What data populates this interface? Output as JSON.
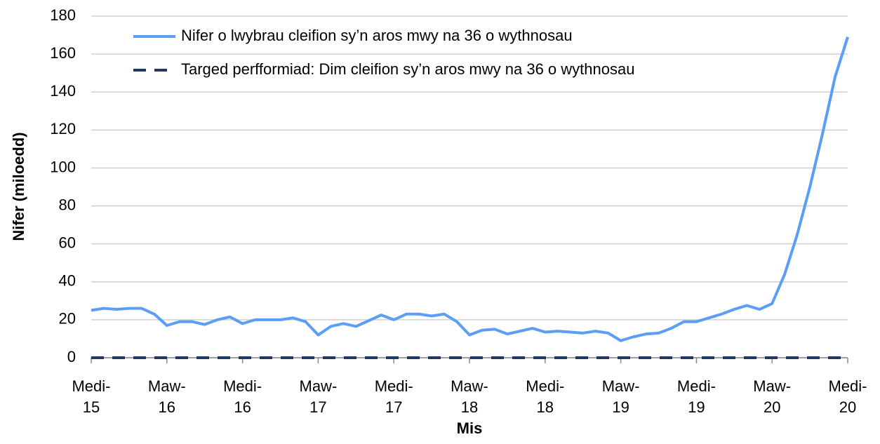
{
  "chart_data": {
    "type": "line",
    "y_label": "Nifer (miloedd)",
    "x_label": "Mis",
    "categories": [
      "Medi-\n15",
      null,
      null,
      null,
      null,
      null,
      "Maw-\n16",
      null,
      null,
      null,
      null,
      null,
      "Medi-\n16",
      null,
      null,
      null,
      null,
      null,
      "Maw-\n17",
      null,
      null,
      null,
      null,
      null,
      "Medi-\n17",
      null,
      null,
      null,
      null,
      null,
      "Maw-\n18",
      null,
      null,
      null,
      null,
      null,
      "Medi-\n18",
      null,
      null,
      null,
      null,
      null,
      "Maw-\n19",
      null,
      null,
      null,
      null,
      null,
      "Medi-\n19",
      null,
      null,
      null,
      null,
      null,
      "Maw-\n20",
      null,
      null,
      null,
      null,
      null,
      "Medi-\n20"
    ],
    "series": [
      {
        "name": "Nifer o lwybrau cleifion sy’n aros mwy na 36 o wythnosau",
        "color": "#5b9ef5",
        "dash": false,
        "values": [
          25,
          26,
          25.5,
          26,
          26,
          23,
          17,
          19,
          19,
          17.5,
          20,
          21.5,
          18,
          20,
          20,
          20,
          21,
          19,
          12,
          16.5,
          18,
          16.5,
          19.5,
          22.5,
          20,
          23,
          23,
          22,
          23,
          19,
          12,
          14.5,
          15,
          12.5,
          14,
          15.5,
          13.5,
          14,
          13.5,
          13,
          14,
          13,
          9,
          11,
          12.5,
          13,
          15.5,
          19,
          19,
          21,
          23,
          25.5,
          27.5,
          25.5,
          28.5,
          44,
          65,
          90,
          118,
          148,
          169
        ]
      },
      {
        "name": "Targed perfformiad: Dim cleifion sy’n aros mwy na 36 o wythnosau",
        "color": "#1f3864",
        "dash": true,
        "values": [
          0,
          0,
          0,
          0,
          0,
          0,
          0,
          0,
          0,
          0,
          0,
          0,
          0,
          0,
          0,
          0,
          0,
          0,
          0,
          0,
          0,
          0,
          0,
          0,
          0,
          0,
          0,
          0,
          0,
          0,
          0,
          0,
          0,
          0,
          0,
          0,
          0,
          0,
          0,
          0,
          0,
          0,
          0,
          0,
          0,
          0,
          0,
          0,
          0,
          0,
          0,
          0,
          0,
          0,
          0,
          0,
          0,
          0,
          0,
          0,
          0
        ]
      }
    ],
    "ylim": [
      0,
      180
    ],
    "yticks": [
      0,
      20,
      40,
      60,
      80,
      100,
      120,
      140,
      160,
      180
    ],
    "grid": true,
    "legend": "upper left"
  }
}
